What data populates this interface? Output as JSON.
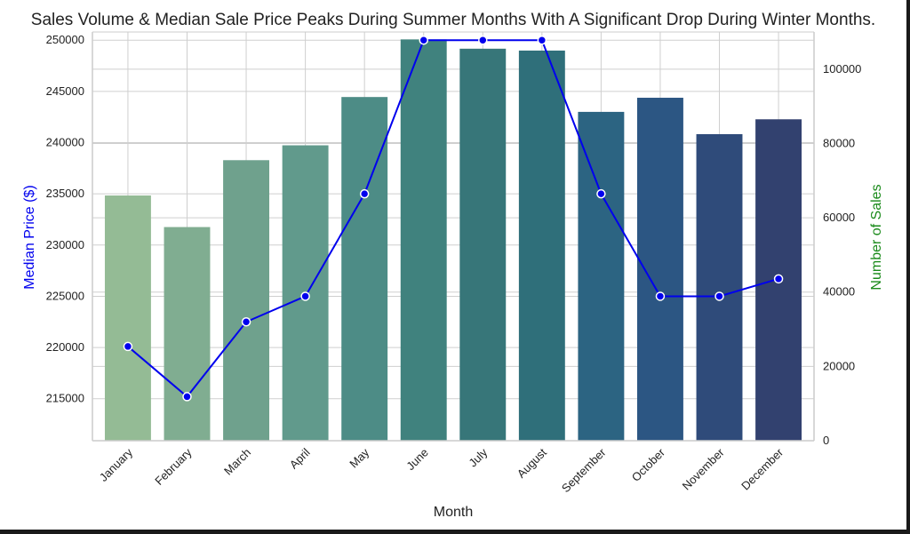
{
  "chart_data": {
    "type": "bar",
    "title": "Sales Volume & Median Sale Price Peaks During Summer Months With A Significant Drop During Winter Months.",
    "xlabel": "Month",
    "categories": [
      "January",
      "February",
      "March",
      "April",
      "May",
      "June",
      "July",
      "August",
      "September",
      "October",
      "November",
      "December"
    ],
    "grid": true,
    "series": [
      {
        "name": "",
        "type": "bar",
        "axis": "right",
        "values": [
          66000,
          57500,
          75500,
          79500,
          92500,
          108000,
          105500,
          105000,
          88500,
          92300,
          82500,
          86500
        ]
      },
      {
        "name": "",
        "type": "line",
        "axis": "left",
        "values": [
          220100,
          215200,
          222500,
          225000,
          235000,
          250000,
          250000,
          250000,
          235000,
          225000,
          225000,
          226700
        ]
      }
    ],
    "y_left": {
      "label": "Median Price ($)",
      "ticks": [
        215000,
        220000,
        225000,
        230000,
        235000,
        240000,
        245000,
        250000
      ],
      "range": [
        210900,
        250800
      ]
    },
    "y_right": {
      "label": "Number of Sales",
      "ticks": [
        0,
        20000,
        40000,
        60000,
        80000,
        100000
      ],
      "range": [
        0,
        110000
      ]
    },
    "colors": {
      "bars": [
        "#94bb95",
        "#80ad91",
        "#6fa18d",
        "#619a8c",
        "#4d8c86",
        "#40827e",
        "#377679",
        "#2f6f7a",
        "#2c6482",
        "#2c5683",
        "#2f4b7a",
        "#32416f"
      ],
      "line": "#0000ee",
      "left_label": "#0000ee",
      "right_label": "#1a8a1a"
    }
  }
}
